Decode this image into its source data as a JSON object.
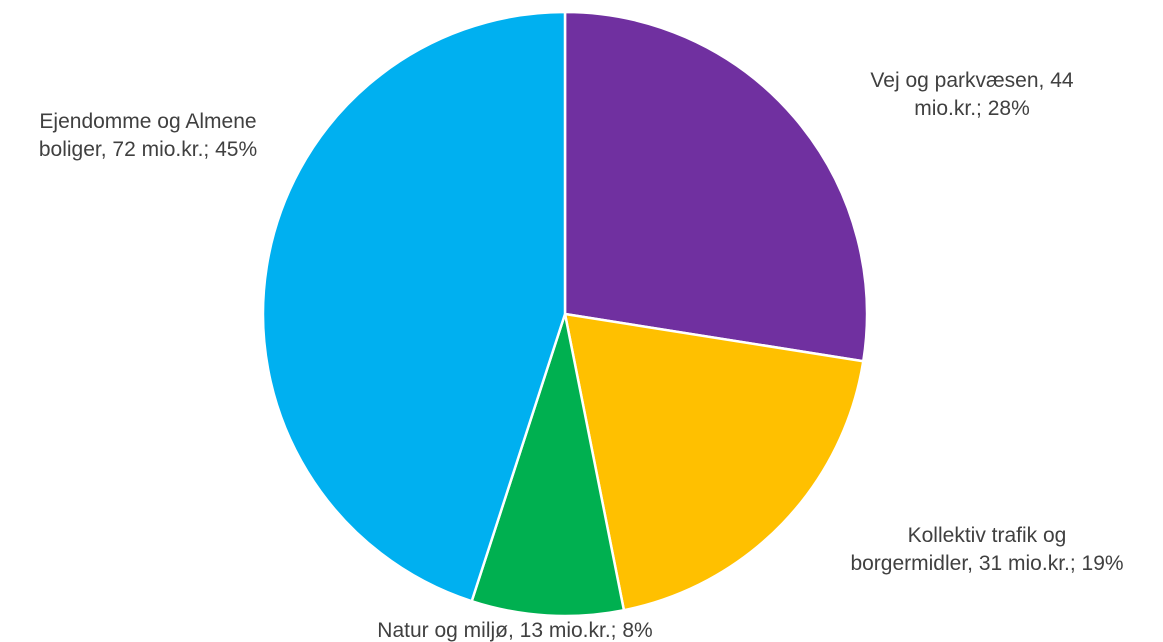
{
  "chart_data": {
    "type": "pie",
    "title": "",
    "slices": [
      {
        "label": "Vej og parkvæsen",
        "value": 44,
        "unit": "mio.kr.",
        "percent": 28,
        "color": "#7030A0",
        "label_lines": [
          "Vej og parkvæsen, 44",
          "mio.kr.; 28%"
        ]
      },
      {
        "label": "Kollektiv trafik og borgermidler",
        "value": 31,
        "unit": "mio.kr.",
        "percent": 19,
        "color": "#FFC000",
        "label_lines": [
          "Kollektiv trafik og",
          "borgermidler, 31 mio.kr.; 19%"
        ]
      },
      {
        "label": "Natur og miljø",
        "value": 13,
        "unit": "mio.kr.",
        "percent": 8,
        "color": "#00B050",
        "label_lines": [
          "Natur og miljø, 13 mio.kr.; 8%"
        ]
      },
      {
        "label": "Ejendomme og Almene boliger",
        "value": 72,
        "unit": "mio.kr.",
        "percent": 45,
        "color": "#00B0F0",
        "label_lines": [
          "Ejendomme og Almene",
          "boliger, 72 mio.kr.; 45%"
        ]
      }
    ],
    "start_angle": "12 o'clock",
    "direction": "clockwise",
    "slice_border_color": "#FFFFFF",
    "label_color": "#404040",
    "legend": "none"
  }
}
